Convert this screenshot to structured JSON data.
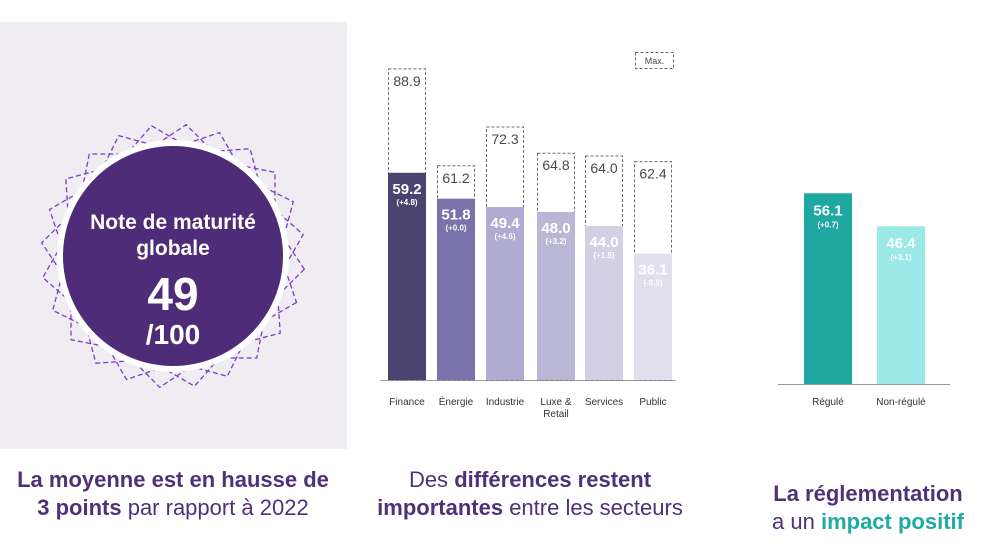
{
  "badge": {
    "label": "Note de maturité globale",
    "value": "49",
    "denominator": "/100",
    "colors": {
      "circle": "#4e2c77",
      "outline": "#7b3fc4",
      "panel": "#efedf2"
    }
  },
  "captions": {
    "left": {
      "bold1": "La moyenne est en hausse de 3 points",
      "rest": " par rapport à 2022"
    },
    "middle": {
      "pre": "Des ",
      "bold1": "différences restent importantes",
      "rest": " entre les secteurs"
    },
    "right": {
      "bold1": "La réglementation",
      "plain": "a un ",
      "highlight": "impact positif"
    }
  },
  "chart_data": [
    {
      "type": "bar",
      "categories": [
        "Finance",
        "Énergie",
        "Industrie",
        "Luxe & Retail",
        "Services",
        "Public"
      ],
      "values": [
        59.2,
        51.8,
        49.4,
        48.0,
        44.0,
        36.1
      ],
      "value_labels": [
        "59.2",
        "51.8",
        "49.4",
        "48.0",
        "44.0",
        "36.1"
      ],
      "change_labels": [
        "(+4.8)",
        "(+0.0)",
        "(+4.6)",
        "(+3.2)",
        "(+1.5)",
        "(-0.9)"
      ],
      "max_values": [
        88.9,
        61.2,
        72.3,
        64.8,
        64.0,
        62.4
      ],
      "max_labels": [
        "88.9",
        "61.2",
        "72.3",
        "64.8",
        "64.0",
        "62.4"
      ],
      "legend": "Max.",
      "colors": [
        "#4b4470",
        "#7a73ab",
        "#b0abd0",
        "#bab6d6",
        "#d3d0e6",
        "#e1dfee"
      ],
      "ylim": [
        0,
        100
      ]
    },
    {
      "type": "bar",
      "categories": [
        "Régulé",
        "Non-régulé"
      ],
      "values": [
        56.1,
        46.4
      ],
      "value_labels": [
        "56.1",
        "46.4"
      ],
      "change_labels": [
        "(+0.7)",
        "(+3.1)"
      ],
      "colors": [
        "#1fa8a1",
        "#9ae8e7"
      ],
      "ylim": [
        0,
        100
      ]
    }
  ]
}
